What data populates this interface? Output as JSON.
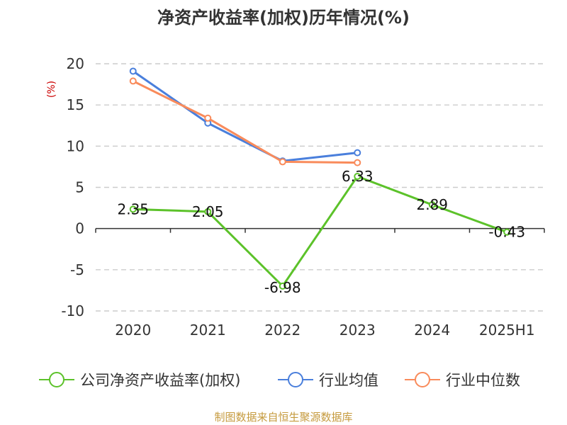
{
  "chart_data": {
    "type": "line",
    "title": "净资产收益率(加权)历年情况(%)",
    "ylabel": "(%)",
    "categories": [
      "2020",
      "2021",
      "2022",
      "2023",
      "2024",
      "2025H1"
    ],
    "ylim": [
      -10,
      20
    ],
    "yticks": [
      20,
      15,
      10,
      5,
      0,
      -5,
      -10
    ],
    "grid": true,
    "legend_position": "bottom",
    "series": [
      {
        "name": "公司净资产收益率(加权)",
        "color": "#5cc22a",
        "values": [
          2.35,
          2.05,
          -6.98,
          6.33,
          2.89,
          -0.43
        ],
        "labels": [
          "2.35",
          "2.05",
          "-6.98",
          "6.33",
          "2.89",
          "-0.43"
        ]
      },
      {
        "name": "行业均值",
        "color": "#4a7fdc",
        "values": [
          19.1,
          12.8,
          8.2,
          9.2,
          null,
          null
        ]
      },
      {
        "name": "行业中位数",
        "color": "#f98b5b",
        "values": [
          17.9,
          13.4,
          8.1,
          8.0,
          null,
          null
        ]
      }
    ]
  },
  "source_text": "制图数据来自恒生聚源数据库"
}
